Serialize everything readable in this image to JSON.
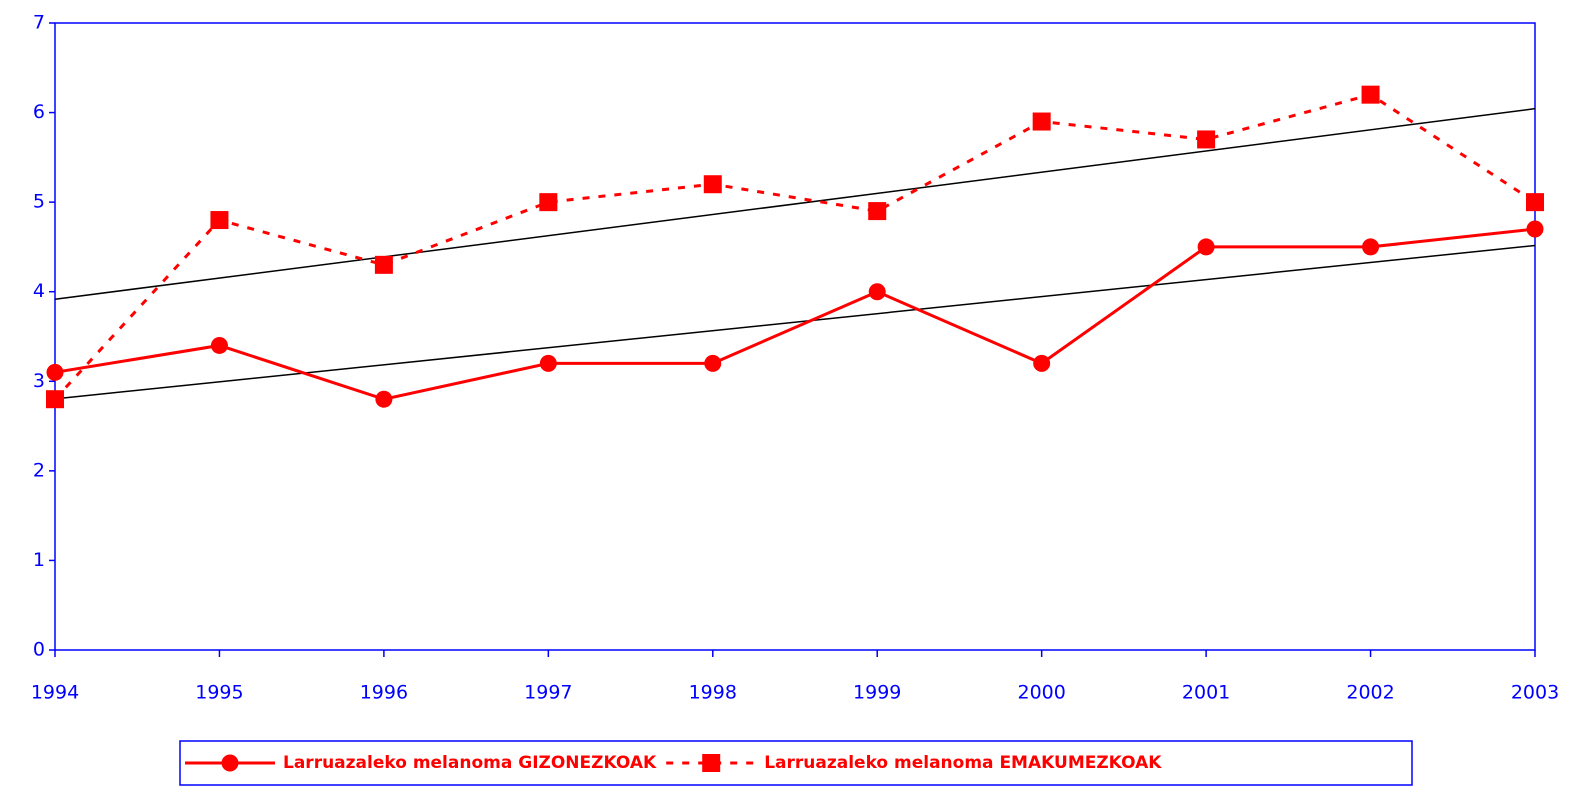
{
  "chart_data": {
    "type": "line",
    "categories": [
      "1994",
      "1995",
      "1996",
      "1997",
      "1998",
      "1999",
      "2000",
      "2001",
      "2002",
      "2003"
    ],
    "series": [
      {
        "name": "Larruazaleko melanoma GIZONEZKOAK",
        "color": "#ff0000",
        "marker": "circle",
        "dash": false,
        "trendline": true,
        "values": [
          3.1,
          3.4,
          2.8,
          3.2,
          3.2,
          4.0,
          3.2,
          4.5,
          4.5,
          4.7
        ]
      },
      {
        "name": "Larruazaleko melanoma EMAKUMEZKOAK",
        "color": "#ff0000",
        "marker": "square",
        "dash": true,
        "trendline": true,
        "values": [
          2.8,
          4.8,
          4.3,
          5.0,
          5.2,
          4.9,
          5.9,
          5.7,
          6.2,
          5.0
        ]
      }
    ],
    "ylim": [
      0,
      7
    ],
    "yticks": [
      0,
      1,
      2,
      3,
      4,
      5,
      6,
      7
    ],
    "grid": false,
    "legend": "bottom"
  }
}
